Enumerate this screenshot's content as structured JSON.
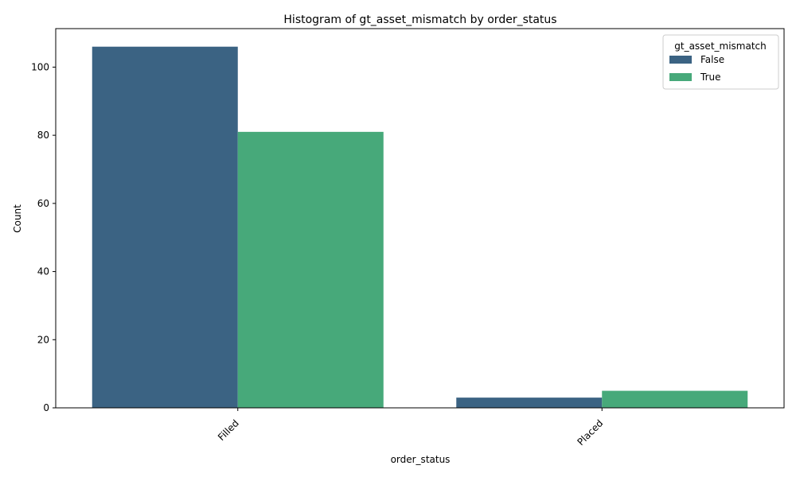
{
  "chart_data": {
    "type": "bar",
    "title": "Histogram of gt_asset_mismatch by order_status",
    "xlabel": "order_status",
    "ylabel": "Count",
    "categories": [
      "Filled",
      "Placed"
    ],
    "series": [
      {
        "name": "False",
        "values": [
          106,
          3
        ],
        "color": "#3b6383"
      },
      {
        "name": "True",
        "values": [
          81,
          5
        ],
        "color": "#47a97a"
      }
    ],
    "ylim": [
      0,
      111.3
    ],
    "yticks": [
      0,
      20,
      40,
      60,
      80,
      100
    ],
    "ytick_labels": [
      "0",
      "20",
      "40",
      "60",
      "80",
      "100"
    ],
    "legend": {
      "title": "gt_asset_mismatch",
      "placement": "top-right"
    },
    "grid": false
  }
}
